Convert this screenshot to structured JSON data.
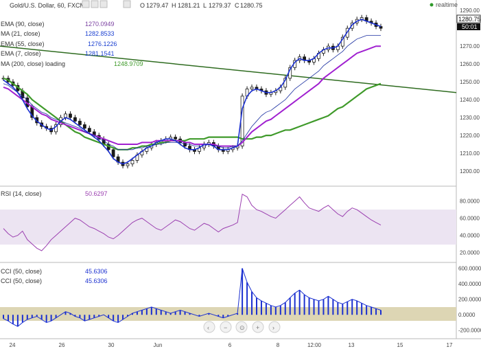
{
  "header": {
    "symbol": "Gold/U.S. Dollar, 60, FXCM",
    "open_label": "O",
    "open": "1279.47",
    "high_label": "H",
    "high": "1281.21",
    "low_label": "L",
    "low": "1279.37",
    "close_label": "C",
    "close": "1280.75",
    "realtime": "realtime"
  },
  "legend": [
    {
      "label": "EMA (90, close)",
      "value": "1270.0949",
      "color": "#7a3fa0"
    },
    {
      "label": "MA (21, close)",
      "value": "1282.8533",
      "color": "#1a3fd0"
    },
    {
      "label": "EMA (55, close)",
      "value": "1276.1226",
      "color": "#1a3fd0"
    },
    {
      "label": "EMA (7, close)",
      "value": "1281.1541",
      "color": "#1a3fd0"
    },
    {
      "label": "MA (200, close) loading",
      "value": "1248.9709",
      "color": "#3f9a2a"
    }
  ],
  "price_badge": {
    "price": "1280.75",
    "timer": "50:01"
  },
  "rsi_label": {
    "label": "RSI (14, close)",
    "value": "50.6297"
  },
  "cci_labels": [
    {
      "label": "CCI (50, close)",
      "value": "45.6306"
    },
    {
      "label": "CCI (50, close)",
      "value": "45.6306"
    }
  ],
  "nav_icons": [
    "chevron-left-icon",
    "zoom-out-icon",
    "reset-icon",
    "zoom-in-icon",
    "chevron-right-icon"
  ],
  "colors": {
    "candle": "#1a1a1a",
    "ema90": "#a020d0",
    "ma21": "#1a2fd0",
    "ema55": "#1a2fa0",
    "ma200": "#3f9a2a",
    "trendline": "#2e6b1f",
    "rsi": "#9b3fb0",
    "rsi_band": "#e8dff0",
    "cci": "#1a2fd0",
    "cci_band": "#ddd6b4"
  },
  "chart_data": {
    "type": "candlestick",
    "x_ticks": [
      "24",
      "26",
      "30",
      "Jun",
      "6",
      "8",
      "12:00",
      "13",
      "15",
      "17"
    ],
    "y_ticks": [
      "1290.00",
      "1270.00",
      "1260.00",
      "1250.00",
      "1240.00",
      "1230.00",
      "1220.00",
      "1210.00",
      "1200.00"
    ],
    "ylim": [
      1195,
      1292
    ],
    "close_series": [
      1252,
      1250,
      1248,
      1245,
      1241,
      1236,
      1230,
      1227,
      1225,
      1224,
      1222,
      1226,
      1230,
      1232,
      1230,
      1228,
      1226,
      1224,
      1222,
      1220,
      1218,
      1215,
      1212,
      1208,
      1205,
      1203,
      1204,
      1206,
      1209,
      1211,
      1213,
      1215,
      1216,
      1217,
      1218,
      1219,
      1218,
      1216,
      1214,
      1212,
      1211,
      1213,
      1215,
      1216,
      1214,
      1212,
      1211,
      1212,
      1213,
      1214,
      1242,
      1246,
      1247,
      1246,
      1245,
      1243,
      1244,
      1245,
      1247,
      1252,
      1258,
      1262,
      1264,
      1262,
      1261,
      1263,
      1266,
      1268,
      1270,
      1268,
      1270,
      1275,
      1280,
      1283,
      1285,
      1286,
      1284,
      1283,
      1281,
      1280
    ],
    "ma200_series": [
      1252,
      1251,
      1249,
      1247,
      1245,
      1243,
      1240,
      1238,
      1236,
      1234,
      1232,
      1230,
      1228,
      1226,
      1224,
      1222,
      1221,
      1219,
      1218,
      1217,
      1216,
      1215,
      1214,
      1213,
      1212,
      1212,
      1212,
      1213,
      1213,
      1214,
      1214,
      1215,
      1215,
      1216,
      1216,
      1217,
      1217,
      1217,
      1217,
      1218,
      1218,
      1218,
      1218,
      1219,
      1219,
      1219,
      1219,
      1219,
      1219,
      1219,
      1218,
      1218,
      1218,
      1219,
      1219,
      1220,
      1220,
      1221,
      1222,
      1223,
      1223,
      1224,
      1225,
      1226,
      1227,
      1228,
      1229,
      1230,
      1231,
      1233,
      1235,
      1236,
      1238,
      1240,
      1242,
      1244,
      1246,
      1247,
      1248,
      1249
    ],
    "ema90_series": [
      1247,
      1246,
      1244,
      1242,
      1240,
      1238,
      1236,
      1234,
      1232,
      1231,
      1229,
      1228,
      1227,
      1226,
      1225,
      1224,
      1223,
      1222,
      1221,
      1220,
      1219,
      1218,
      1217,
      1216,
      1215,
      1215,
      1215,
      1215,
      1215,
      1216,
      1216,
      1216,
      1217,
      1217,
      1217,
      1217,
      1217,
      1217,
      1216,
      1216,
      1215,
      1215,
      1215,
      1215,
      1215,
      1214,
      1214,
      1214,
      1214,
      1214,
      1216,
      1219,
      1222,
      1224,
      1226,
      1228,
      1229,
      1231,
      1233,
      1235,
      1237,
      1239,
      1241,
      1243,
      1245,
      1247,
      1249,
      1252,
      1254,
      1256,
      1258,
      1260,
      1262,
      1264,
      1266,
      1267,
      1268,
      1269,
      1270,
      1270
    ],
    "ema55_series": [
      1249,
      1248,
      1246,
      1244,
      1242,
      1240,
      1237,
      1235,
      1233,
      1232,
      1230,
      1229,
      1228,
      1227,
      1226,
      1225,
      1224,
      1222,
      1221,
      1220,
      1218,
      1217,
      1215,
      1214,
      1212,
      1212,
      1212,
      1212,
      1213,
      1213,
      1214,
      1214,
      1215,
      1215,
      1216,
      1216,
      1216,
      1216,
      1215,
      1215,
      1214,
      1214,
      1214,
      1215,
      1214,
      1214,
      1213,
      1213,
      1214,
      1214,
      1217,
      1221,
      1225,
      1228,
      1231,
      1233,
      1234,
      1236,
      1238,
      1240,
      1243,
      1246,
      1248,
      1250,
      1252,
      1254,
      1256,
      1259,
      1261,
      1263,
      1265,
      1267,
      1270,
      1272,
      1274,
      1275,
      1276,
      1276,
      1276,
      1276
    ],
    "ema7_series": [
      1251,
      1249,
      1247,
      1244,
      1240,
      1235,
      1231,
      1228,
      1226,
      1224,
      1223,
      1225,
      1228,
      1230,
      1229,
      1227,
      1225,
      1223,
      1221,
      1219,
      1217,
      1214,
      1211,
      1207,
      1205,
      1204,
      1205,
      1207,
      1209,
      1211,
      1213,
      1214,
      1216,
      1217,
      1218,
      1218,
      1217,
      1215,
      1213,
      1212,
      1212,
      1213,
      1215,
      1215,
      1214,
      1212,
      1212,
      1212,
      1213,
      1214,
      1235,
      1242,
      1245,
      1246,
      1245,
      1244,
      1244,
      1245,
      1247,
      1251,
      1257,
      1261,
      1263,
      1262,
      1262,
      1263,
      1266,
      1268,
      1269,
      1269,
      1270,
      1274,
      1278,
      1282,
      1284,
      1285,
      1284,
      1283,
      1282,
      1281
    ],
    "rsi_series": [
      48,
      42,
      38,
      40,
      45,
      35,
      30,
      25,
      22,
      28,
      35,
      40,
      45,
      50,
      55,
      60,
      58,
      54,
      50,
      48,
      45,
      42,
      38,
      36,
      40,
      45,
      50,
      55,
      58,
      60,
      56,
      52,
      48,
      46,
      50,
      54,
      58,
      56,
      52,
      48,
      46,
      50,
      54,
      52,
      48,
      44,
      48,
      50,
      52,
      55,
      88,
      85,
      75,
      70,
      68,
      65,
      62,
      60,
      65,
      70,
      75,
      80,
      85,
      78,
      72,
      70,
      68,
      72,
      75,
      70,
      65,
      62,
      68,
      72,
      70,
      66,
      62,
      58,
      55,
      52
    ],
    "cci_series": [
      -50,
      -80,
      -120,
      -150,
      -100,
      -60,
      -40,
      -20,
      -60,
      -100,
      -80,
      -40,
      0,
      40,
      20,
      -20,
      -40,
      -80,
      -60,
      -40,
      -20,
      0,
      -40,
      -80,
      -100,
      -60,
      -20,
      20,
      40,
      60,
      80,
      100,
      80,
      60,
      40,
      20,
      40,
      60,
      40,
      20,
      0,
      -20,
      0,
      20,
      0,
      -20,
      -40,
      -20,
      0,
      20,
      600,
      420,
      300,
      220,
      180,
      150,
      120,
      100,
      120,
      160,
      220,
      280,
      320,
      260,
      220,
      200,
      180,
      200,
      240,
      200,
      160,
      140,
      170,
      200,
      180,
      150,
      120,
      100,
      80,
      60
    ],
    "rsi_ticks": [
      "80.0000",
      "60.0000",
      "40.0000",
      "20.0000"
    ],
    "rsi_ylim": [
      10,
      95
    ],
    "cci_ticks": [
      "600.0000",
      "400.0000",
      "200.0000",
      "0.0000",
      "-200.0000"
    ],
    "cci_ylim": [
      -300,
      650
    ]
  }
}
